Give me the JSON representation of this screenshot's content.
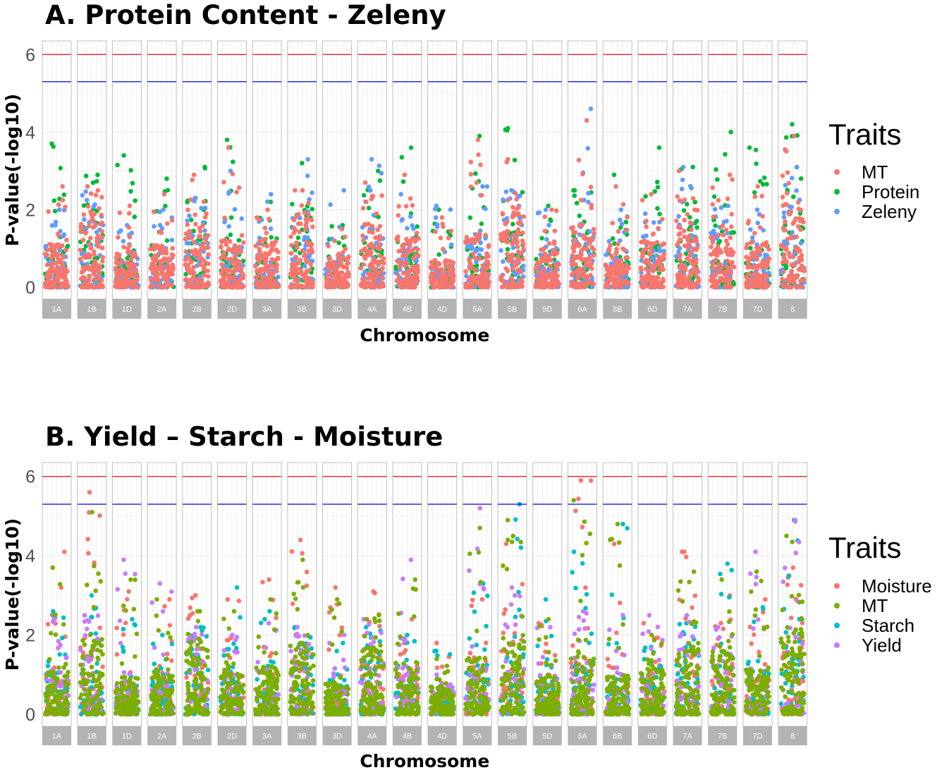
{
  "chart_data": [
    {
      "type": "scatter",
      "title": "A. Protein Content - Zeleny",
      "xlabel": "Chromosome",
      "ylabel": "P-value(-log10)",
      "ylim": [
        -0.3,
        6.35
      ],
      "yticks": [
        0,
        2,
        4,
        6
      ],
      "threshold_lines": [
        {
          "name": "red-threshold",
          "value": 6.0,
          "color": "#e8232b"
        },
        {
          "name": "blue-threshold",
          "value": 5.3,
          "color": "#1a1adb"
        }
      ],
      "facets": [
        "1A",
        "1B",
        "1D",
        "2A",
        "2B",
        "2D",
        "3A",
        "3B",
        "3D",
        "4A",
        "4B",
        "4D",
        "5A",
        "5B",
        "5D",
        "6A",
        "6B",
        "6D",
        "7A",
        "7B",
        "7D",
        "8"
      ],
      "legend": {
        "title": "Traits",
        "position": "right",
        "entries": [
          "MT",
          "Protein",
          "Zeleny"
        ]
      },
      "series": [
        {
          "name": "MT",
          "color": "#f8766d",
          "max_per_chromosome": [
            2.6,
            2.6,
            2.1,
            2.4,
            2.9,
            3.6,
            2.0,
            2.5,
            1.5,
            2.7,
            2.9,
            1.8,
            3.8,
            3.3,
            2.0,
            4.3,
            2.6,
            2.4,
            3.0,
            2.9,
            2.6,
            3.9
          ]
        },
        {
          "name": "Protein",
          "color": "#00ba38",
          "max_per_chromosome": [
            3.7,
            2.9,
            3.4,
            2.8,
            3.1,
            3.8,
            2.2,
            3.2,
            1.6,
            3.0,
            3.6,
            2.0,
            3.9,
            4.1,
            2.1,
            2.5,
            2.9,
            3.6,
            3.1,
            4.0,
            3.6,
            4.2
          ]
        },
        {
          "name": "Zeleny",
          "color": "#619cff",
          "max_per_chromosome": [
            2.0,
            2.6,
            1.6,
            2.0,
            2.3,
            3.0,
            2.4,
            3.3,
            2.5,
            3.3,
            2.4,
            2.1,
            2.6,
            2.5,
            2.0,
            4.6,
            2.0,
            1.9,
            3.1,
            2.1,
            2.0,
            3.1
          ]
        }
      ]
    },
    {
      "type": "scatter",
      "title": "B. Yield – Starch - Moisture",
      "xlabel": "Chromosome",
      "ylabel": "P-value(-log10)",
      "ylim": [
        -0.3,
        6.35
      ],
      "yticks": [
        0,
        2,
        4,
        6
      ],
      "threshold_lines": [
        {
          "name": "red-threshold",
          "value": 6.0,
          "color": "#e8232b"
        },
        {
          "name": "blue-threshold",
          "value": 5.3,
          "color": "#1a1adb"
        }
      ],
      "facets": [
        "1A",
        "1B",
        "1D",
        "2A",
        "2B",
        "2D",
        "3A",
        "3B",
        "3D",
        "4A",
        "4B",
        "4D",
        "5A",
        "5B",
        "5D",
        "6A",
        "6B",
        "6D",
        "7A",
        "7B",
        "7D",
        "8"
      ],
      "legend": {
        "title": "Traits",
        "position": "right",
        "entries": [
          "Moisture",
          "MT",
          "Starch",
          "Yield"
        ]
      },
      "series": [
        {
          "name": "Moisture",
          "color": "#f8766d",
          "max_per_chromosome": [
            4.1,
            5.6,
            3.1,
            2.9,
            3.0,
            2.9,
            3.4,
            4.4,
            3.2,
            3.1,
            2.4,
            1.8,
            2.9,
            4.3,
            2.3,
            5.9,
            4.3,
            2.3,
            4.1,
            3.0,
            2.9,
            3.7
          ]
        },
        {
          "name": "MT",
          "color": "#7cae00",
          "max_per_chromosome": [
            3.7,
            5.1,
            3.4,
            2.9,
            2.6,
            2.6,
            2.9,
            3.9,
            2.9,
            2.5,
            3.4,
            1.4,
            4.7,
            4.9,
            2.4,
            5.4,
            4.8,
            2.0,
            3.6,
            3.4,
            3.6,
            4.5
          ]
        },
        {
          "name": "Starch",
          "color": "#00bfc4",
          "max_per_chromosome": [
            2.6,
            3.0,
            2.4,
            2.0,
            2.2,
            3.2,
            2.6,
            2.2,
            1.8,
            2.2,
            2.0,
            1.6,
            3.3,
            5.3,
            2.9,
            4.1,
            4.8,
            1.7,
            2.3,
            3.8,
            2.7,
            4.9
          ]
        },
        {
          "name": "Yield",
          "color": "#c77cff",
          "max_per_chromosome": [
            2.4,
            2.5,
            3.9,
            3.3,
            2.2,
            2.0,
            2.3,
            2.2,
            2.0,
            2.4,
            3.9,
            1.0,
            5.2,
            3.2,
            2.2,
            2.6,
            2.5,
            2.5,
            2.5,
            2.2,
            4.1,
            4.9
          ]
        }
      ]
    }
  ]
}
